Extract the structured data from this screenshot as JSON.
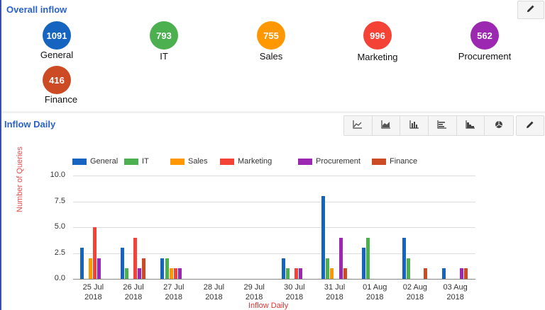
{
  "overall_inflow": {
    "title": "Overall inflow",
    "edit_icon": "pencil-icon",
    "categories": [
      {
        "label": "General",
        "value": "1091",
        "color": "#1565c0"
      },
      {
        "label": "IT",
        "value": "793",
        "color": "#4caf50"
      },
      {
        "label": "Sales",
        "value": "755",
        "color": "#ff9800"
      },
      {
        "label": "Marketing",
        "value": "996",
        "color": "#f44336"
      },
      {
        "label": "Procurement",
        "value": "562",
        "color": "#9c27b0"
      },
      {
        "label": "Finance",
        "value": "416",
        "color": "#cc4a24"
      }
    ]
  },
  "inflow_daily": {
    "title": "Inflow Daily",
    "toolbar": [
      {
        "name": "line-chart-icon"
      },
      {
        "name": "area-chart-icon"
      },
      {
        "name": "column-chart-icon"
      },
      {
        "name": "bar-chart-icon"
      },
      {
        "name": "stepped-area-chart-icon"
      },
      {
        "name": "pie-chart-icon"
      }
    ],
    "edit_icon": "pencil-icon"
  },
  "chart_data": {
    "type": "bar",
    "title": "",
    "xlabel": "Inflow Daily",
    "ylabel": "Number of Queries",
    "ylim": [
      0,
      10
    ],
    "yticks": [
      "0.0",
      "2.5",
      "5.0",
      "7.5",
      "10.0"
    ],
    "grid": true,
    "legend_position": "top",
    "categories": [
      "25 Jul 2018",
      "26 Jul 2018",
      "27 Jul 2018",
      "28 Jul 2018",
      "29 Jul 2018",
      "30 Jul 2018",
      "31 Jul 2018",
      "01 Aug 2018",
      "02 Aug 2018",
      "03 Aug 2018"
    ],
    "category_lines": [
      [
        "25 Jul",
        "2018"
      ],
      [
        "26 Jul",
        "2018"
      ],
      [
        "27 Jul",
        "2018"
      ],
      [
        "28 Jul",
        "2018"
      ],
      [
        "29 Jul",
        "2018"
      ],
      [
        "30 Jul",
        "2018"
      ],
      [
        "31 Jul",
        "2018"
      ],
      [
        "01 Aug",
        "2018"
      ],
      [
        "02 Aug",
        "2018"
      ],
      [
        "03 Aug",
        "2018"
      ]
    ],
    "series": [
      {
        "name": "General",
        "color": "#1565c0",
        "values": [
          3,
          3,
          2,
          0,
          0,
          2,
          8,
          3,
          4,
          1
        ]
      },
      {
        "name": "IT",
        "color": "#4caf50",
        "values": [
          0,
          1,
          2,
          0,
          0,
          1,
          2,
          4,
          2,
          0
        ]
      },
      {
        "name": "Sales",
        "color": "#ff9800",
        "values": [
          2,
          0,
          1,
          0,
          0,
          0,
          1,
          0,
          0,
          0
        ]
      },
      {
        "name": "Marketing",
        "color": "#f44336",
        "values": [
          5,
          4,
          1,
          0,
          0,
          1,
          0,
          0,
          0,
          0
        ]
      },
      {
        "name": "Procurement",
        "color": "#9c27b0",
        "values": [
          2,
          1,
          1,
          0,
          0,
          1,
          4,
          0,
          0,
          1
        ]
      },
      {
        "name": "Finance",
        "color": "#cc4a24",
        "values": [
          0,
          2,
          0,
          0,
          0,
          0,
          1,
          0,
          1,
          1
        ]
      }
    ]
  }
}
